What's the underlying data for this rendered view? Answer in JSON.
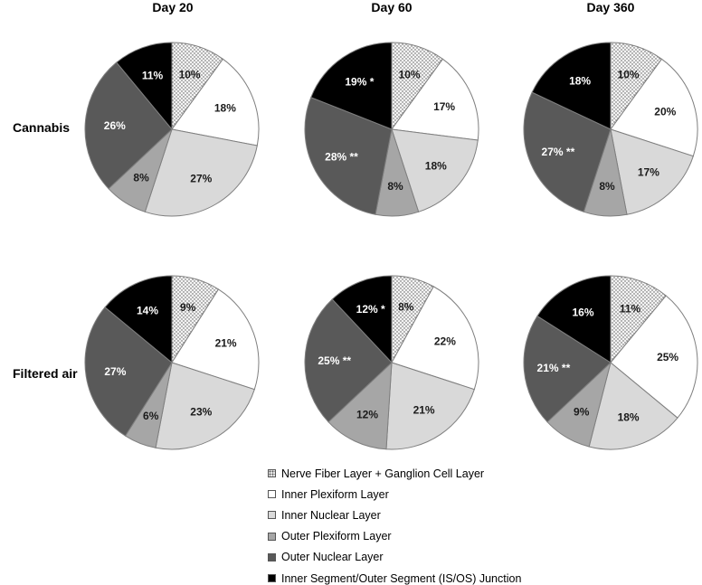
{
  "chart_data": {
    "type": "pie",
    "title": "",
    "columns": [
      "Day 20",
      "Day 60",
      "Day 360"
    ],
    "rows": [
      "Cannabis",
      "Filtered air"
    ],
    "categories": [
      "Nerve Fiber Layer + Ganglion Cell Layer",
      "Inner Plexiform Layer",
      "Inner Nuclear Layer",
      "Outer Plexiform Layer",
      "Outer Nuclear Layer",
      "Inner Segment/Outer Segment (IS/OS) Junction"
    ],
    "colors": [
      "dots",
      "#ffffff",
      "#d9d9d9",
      "#a6a6a6",
      "#595959",
      "#000000"
    ],
    "pies": [
      {
        "row": "Cannabis",
        "column": "Day 20",
        "values": [
          10,
          18,
          27,
          8,
          26,
          11
        ],
        "labels": [
          "10%",
          "18%",
          "27%",
          "8%",
          "26%",
          "11%"
        ]
      },
      {
        "row": "Cannabis",
        "column": "Day 60",
        "values": [
          10,
          17,
          18,
          8,
          28,
          19
        ],
        "labels": [
          "10%",
          "17%",
          "18%",
          "8%",
          "28% **",
          "19% *"
        ]
      },
      {
        "row": "Cannabis",
        "column": "Day 360",
        "values": [
          10,
          20,
          17,
          8,
          27,
          18
        ],
        "labels": [
          "10%",
          "20%",
          "17%",
          "8%",
          "27% **",
          "18%"
        ]
      },
      {
        "row": "Filtered air",
        "column": "Day 20",
        "values": [
          9,
          21,
          23,
          6,
          27,
          14
        ],
        "labels": [
          "9%",
          "21%",
          "23%",
          "6%",
          "27%",
          "14%"
        ]
      },
      {
        "row": "Filtered air",
        "column": "Day 60",
        "values": [
          8,
          22,
          21,
          12,
          25,
          12
        ],
        "labels": [
          "8%",
          "22%",
          "21%",
          "12%",
          "25% **",
          "12% *"
        ]
      },
      {
        "row": "Filtered air",
        "column": "Day 360",
        "values": [
          11,
          25,
          18,
          9,
          21,
          16
        ],
        "labels": [
          "11%",
          "25%",
          "18%",
          "9%",
          "21% **",
          "16%"
        ]
      }
    ]
  }
}
